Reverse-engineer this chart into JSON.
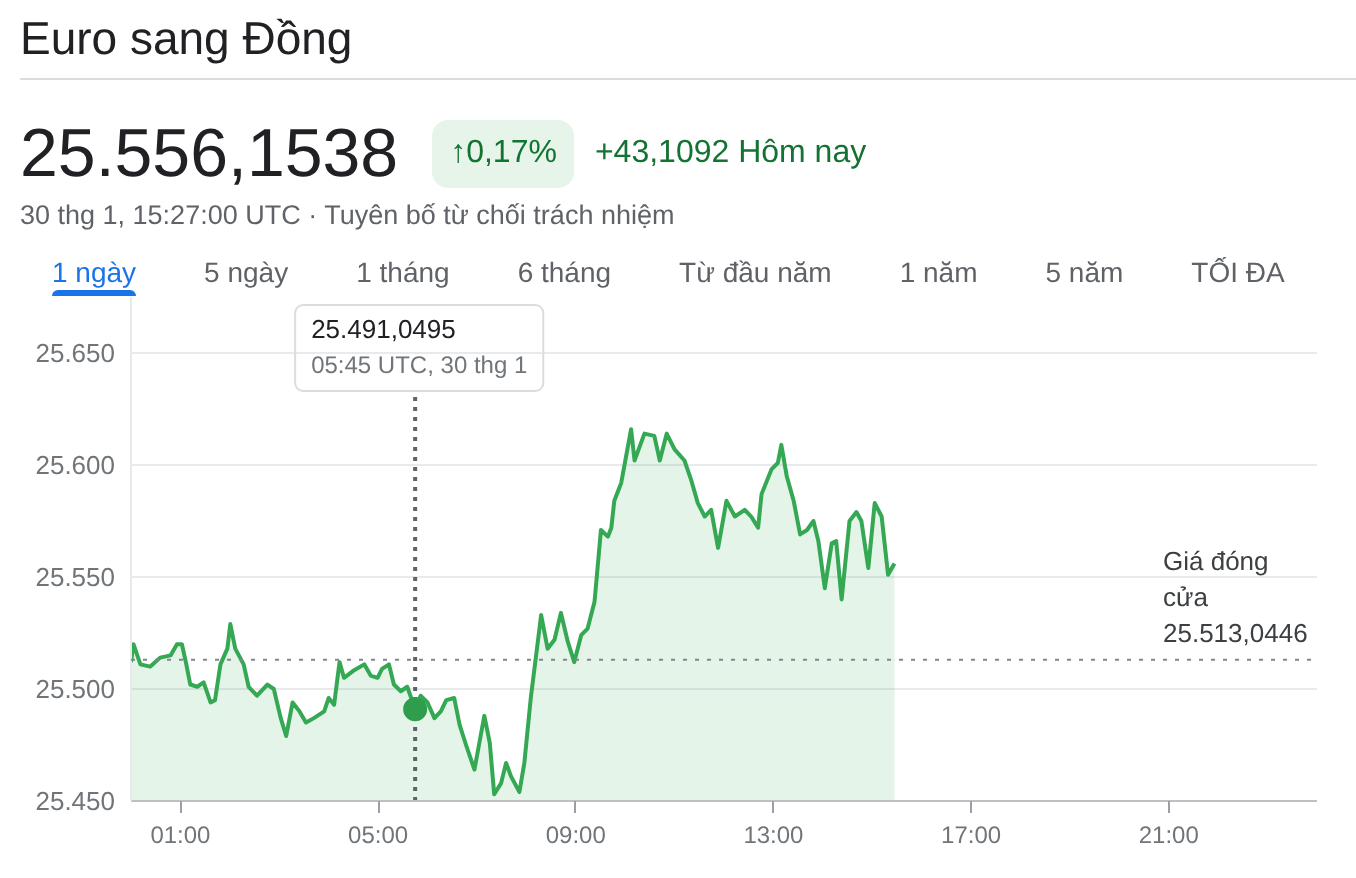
{
  "chart_data": {
    "type": "area",
    "title": "Euro sang Đồng",
    "subtitle": "25.556,1538",
    "annotations": [
      "↑0,17%",
      "+43,1092 Hôm nay",
      "30 thg 1, 15:27:00 UTC · Tuyên bố từ chối trách nhiệm",
      "1 ngày",
      "5 ngày",
      "1 tháng",
      "6 tháng",
      "Từ đầu năm",
      "1 năm",
      "5 năm",
      "TỐI ĐA",
      "25.491,0495",
      "05:45 UTC, 30 thg 1"
    ],
    "x": [
      0.0,
      0.05,
      0.19,
      0.39,
      0.59,
      0.8,
      0.93,
      1.03,
      1.11,
      1.2,
      1.34,
      1.47,
      1.61,
      1.7,
      1.81,
      1.95,
      2.01,
      2.11,
      2.28,
      2.38,
      2.55,
      2.76,
      2.89,
      3.03,
      3.14,
      3.27,
      3.41,
      3.54,
      3.7,
      3.91,
      4.0,
      4.11,
      4.22,
      4.31,
      4.49,
      4.72,
      4.85,
      4.99,
      5.08,
      5.22,
      5.32,
      5.46,
      5.59,
      5.75,
      5.86,
      6.0,
      6.14,
      6.27,
      6.38,
      6.54,
      6.65,
      6.78,
      6.95,
      7.05,
      7.15,
      7.26,
      7.35,
      7.49,
      7.59,
      7.69,
      7.86,
      7.96,
      8.09,
      8.3,
      8.43,
      8.57,
      8.7,
      8.84,
      8.97,
      9.11,
      9.24,
      9.38,
      9.51,
      9.65,
      9.72,
      9.78,
      9.92,
      10.12,
      10.19,
      10.39,
      10.59,
      10.7,
      10.84,
      11.0,
      11.2,
      11.34,
      11.47,
      11.61,
      11.74,
      11.88,
      12.05,
      12.22,
      12.42,
      12.55,
      12.69,
      12.76,
      12.96,
      13.09,
      13.16,
      13.27,
      13.41,
      13.54,
      13.68,
      13.81,
      13.91,
      14.04,
      14.18,
      14.27,
      14.38,
      14.54,
      14.68,
      14.78,
      14.92,
      15.05,
      15.19,
      15.32,
      15.45
    ],
    "series": [
      {
        "color": "#34a853",
        "values": [
          25512,
          25520,
          25511,
          25510,
          25514,
          25515,
          25520,
          25520,
          25512,
          25502,
          25501,
          25503,
          25494,
          25495,
          25511,
          25518,
          25529,
          25518,
          25511,
          25501,
          25497,
          25502,
          25500,
          25487,
          25479,
          25494,
          25490,
          25485,
          25487,
          25490,
          25496,
          25493,
          25512,
          25505,
          25508,
          25511,
          25506,
          25505,
          25509,
          25511,
          25502,
          25499,
          25501,
          25491,
          25497,
          25494,
          25487,
          25490,
          25495,
          25496,
          25484,
          25475,
          25464,
          25476,
          25488,
          25476,
          25453,
          25458,
          25467,
          25461,
          25454,
          25467,
          25496,
          25533,
          25518,
          25522,
          25534,
          25521,
          25512,
          25524,
          25527,
          25539,
          25571,
          25568,
          25572,
          25584,
          25592,
          25616,
          25602,
          25614,
          25613,
          25602,
          25614,
          25607,
          25602,
          25593,
          25583,
          25577,
          25580,
          25563,
          25584,
          25577,
          25580,
          25577,
          25572,
          25587,
          25598,
          25601,
          25609,
          25595,
          25584,
          25569,
          25571,
          25575,
          25566,
          25545,
          25565,
          25566,
          25540,
          25575,
          25579,
          25575,
          25554,
          25583,
          25577,
          25551,
          25556
        ]
      },
      {
        "type": "scatter",
        "marker": "circle",
        "color": "#2e9d4e",
        "x": [
          5.75
        ],
        "values": [
          25491
        ]
      }
    ],
    "xlim": [
      0,
      24
    ],
    "xticks": [
      {
        "value": 1,
        "label": "01:00"
      },
      {
        "value": 5,
        "label": "05:00"
      },
      {
        "value": 9,
        "label": "09:00"
      },
      {
        "value": 13,
        "label": "13:00"
      },
      {
        "value": 17,
        "label": "17:00"
      },
      {
        "value": 21,
        "label": "21:00"
      }
    ],
    "ylim": [
      25450,
      25675
    ],
    "yticks": [
      {
        "value": 25450,
        "label": "25.450"
      },
      {
        "value": 25500,
        "label": "25.500"
      },
      {
        "value": 25550,
        "label": "25.550"
      },
      {
        "value": 25600,
        "label": "25.600"
      },
      {
        "value": 25650,
        "label": "25.650"
      }
    ],
    "ref_lines": [
      {
        "axis": "y",
        "value": 25513.0446,
        "label": "Giá đóng cửa 25.513,0446",
        "line_style": "dotted",
        "color": "#80868b"
      },
      {
        "axis": "x",
        "value": 5.75,
        "line_style": "dotted",
        "color": "#5f6368"
      }
    ],
    "grid": "y"
  }
}
